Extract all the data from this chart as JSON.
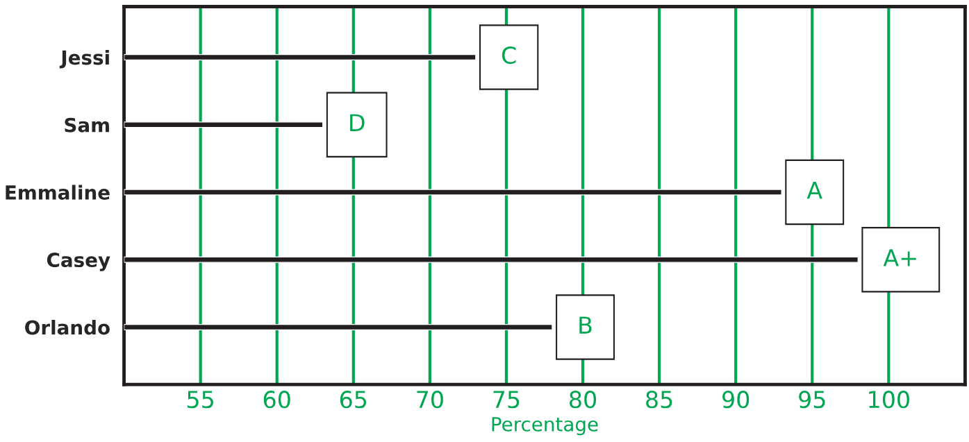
{
  "chart_data": {
    "type": "bar",
    "orientation": "horizontal",
    "xlabel": "Percentage",
    "categories": [
      "Jessi",
      "Sam",
      "Emmaline",
      "Casey",
      "Orlando"
    ],
    "values": [
      73,
      63,
      93,
      98,
      78
    ],
    "value_labels": [
      "C",
      "D",
      "A",
      "A+",
      "B"
    ],
    "color": "#231f20",
    "xlim": [
      50,
      105
    ],
    "xticks": [
      55,
      60,
      65,
      70,
      75,
      80,
      85,
      90,
      95,
      100
    ],
    "grid": "x"
  }
}
